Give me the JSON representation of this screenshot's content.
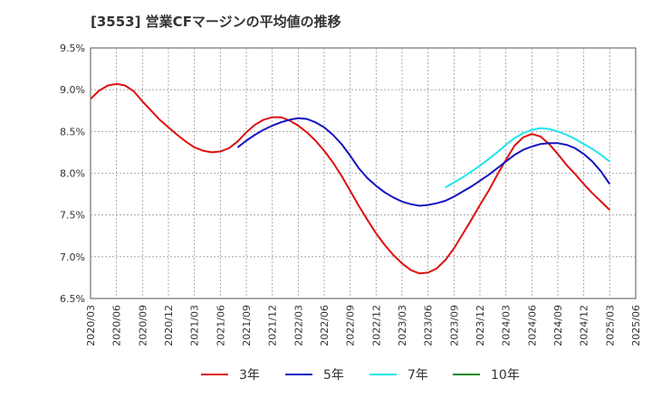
{
  "title": "[3553]  営業CFマージンの平均値の推移",
  "chart_data": {
    "type": "line",
    "title": "[3553]  営業CFマージンの平均値の推移",
    "ylim": [
      6.5,
      9.5
    ],
    "y_ticks": [
      "9.5%",
      "9.0%",
      "8.5%",
      "8.0%",
      "7.5%",
      "7.0%",
      "6.5%"
    ],
    "y_tick_values": [
      9.5,
      9.0,
      8.5,
      8.0,
      7.5,
      7.0,
      6.5
    ],
    "x_ticks": [
      "2020/03",
      "2020/06",
      "2020/09",
      "2020/12",
      "2021/03",
      "2021/06",
      "2021/09",
      "2021/12",
      "2022/03",
      "2022/06",
      "2022/09",
      "2022/12",
      "2023/03",
      "2023/06",
      "2023/09",
      "2023/12",
      "2024/03",
      "2024/06",
      "2024/09",
      "2024/12",
      "2025/03",
      "2025/06"
    ],
    "x_range": [
      "2020/03",
      "2025/06"
    ],
    "grid": true,
    "legend_position": "bottom",
    "series": [
      {
        "name": "3年",
        "color": "#dd1111",
        "x": [
          "2020/03",
          "2020/04",
          "2020/05",
          "2020/06",
          "2020/07",
          "2020/08",
          "2020/09",
          "2020/10",
          "2020/11",
          "2020/12",
          "2021/01",
          "2021/02",
          "2021/03",
          "2021/04",
          "2021/05",
          "2021/06",
          "2021/07",
          "2021/08",
          "2021/09",
          "2021/10",
          "2021/11",
          "2021/12",
          "2022/01",
          "2022/02",
          "2022/03",
          "2022/04",
          "2022/05",
          "2022/06",
          "2022/07",
          "2022/08",
          "2022/09",
          "2022/10",
          "2022/11",
          "2022/12",
          "2023/01",
          "2023/02",
          "2023/03",
          "2023/04",
          "2023/05",
          "2023/06",
          "2023/07",
          "2023/08",
          "2023/09",
          "2023/10",
          "2023/11",
          "2023/12",
          "2024/01",
          "2024/02",
          "2024/03",
          "2024/04",
          "2024/05",
          "2024/06",
          "2024/07",
          "2024/08",
          "2024/09",
          "2024/10",
          "2024/11",
          "2024/12",
          "2025/01",
          "2025/02",
          "2025/03"
        ],
        "values": [
          8.89,
          8.99,
          9.05,
          9.07,
          9.05,
          8.98,
          8.86,
          8.75,
          8.64,
          8.55,
          8.46,
          8.38,
          8.31,
          8.27,
          8.25,
          8.26,
          8.3,
          8.38,
          8.49,
          8.58,
          8.64,
          8.67,
          8.67,
          8.63,
          8.57,
          8.49,
          8.39,
          8.27,
          8.13,
          7.97,
          7.79,
          7.61,
          7.44,
          7.28,
          7.14,
          7.02,
          6.92,
          6.84,
          6.8,
          6.81,
          6.86,
          6.96,
          7.1,
          7.27,
          7.44,
          7.62,
          7.79,
          7.98,
          8.16,
          8.33,
          8.43,
          8.47,
          8.44,
          8.35,
          8.23,
          8.1,
          7.99,
          7.87,
          7.76,
          7.66,
          7.56
        ]
      },
      {
        "name": "5年",
        "color": "#1515c0",
        "x": [
          "2021/08",
          "2021/09",
          "2021/10",
          "2021/11",
          "2021/12",
          "2022/01",
          "2022/02",
          "2022/03",
          "2022/04",
          "2022/05",
          "2022/06",
          "2022/07",
          "2022/08",
          "2022/09",
          "2022/10",
          "2022/11",
          "2022/12",
          "2023/01",
          "2023/02",
          "2023/03",
          "2023/04",
          "2023/05",
          "2023/06",
          "2023/07",
          "2023/08",
          "2023/09",
          "2023/10",
          "2023/11",
          "2023/12",
          "2024/01",
          "2024/02",
          "2024/03",
          "2024/04",
          "2024/05",
          "2024/06",
          "2024/07",
          "2024/08",
          "2024/09",
          "2024/10",
          "2024/11",
          "2024/12",
          "2025/01",
          "2025/02",
          "2025/03"
        ],
        "values": [
          8.31,
          8.39,
          8.46,
          8.52,
          8.57,
          8.61,
          8.64,
          8.66,
          8.65,
          8.61,
          8.55,
          8.46,
          8.35,
          8.21,
          8.06,
          7.94,
          7.85,
          7.77,
          7.71,
          7.66,
          7.63,
          7.61,
          7.62,
          7.64,
          7.67,
          7.72,
          7.78,
          7.84,
          7.91,
          7.98,
          8.06,
          8.14,
          8.22,
          8.28,
          8.32,
          8.35,
          8.36,
          8.36,
          8.34,
          8.3,
          8.23,
          8.14,
          8.02,
          7.87
        ]
      },
      {
        "name": "7年",
        "color": "#22e5ee",
        "x": [
          "2023/08",
          "2023/09",
          "2023/10",
          "2023/11",
          "2023/12",
          "2024/01",
          "2024/02",
          "2024/03",
          "2024/04",
          "2024/05",
          "2024/06",
          "2024/07",
          "2024/08",
          "2024/09",
          "2024/10",
          "2024/11",
          "2024/12",
          "2025/01",
          "2025/02",
          "2025/03"
        ],
        "values": [
          7.83,
          7.89,
          7.95,
          8.02,
          8.09,
          8.17,
          8.25,
          8.34,
          8.42,
          8.48,
          8.52,
          8.54,
          8.53,
          8.5,
          8.46,
          8.41,
          8.35,
          8.29,
          8.22,
          8.14
        ]
      },
      {
        "name": "10年",
        "color": "#1a8a1a",
        "x": [],
        "values": []
      }
    ]
  }
}
